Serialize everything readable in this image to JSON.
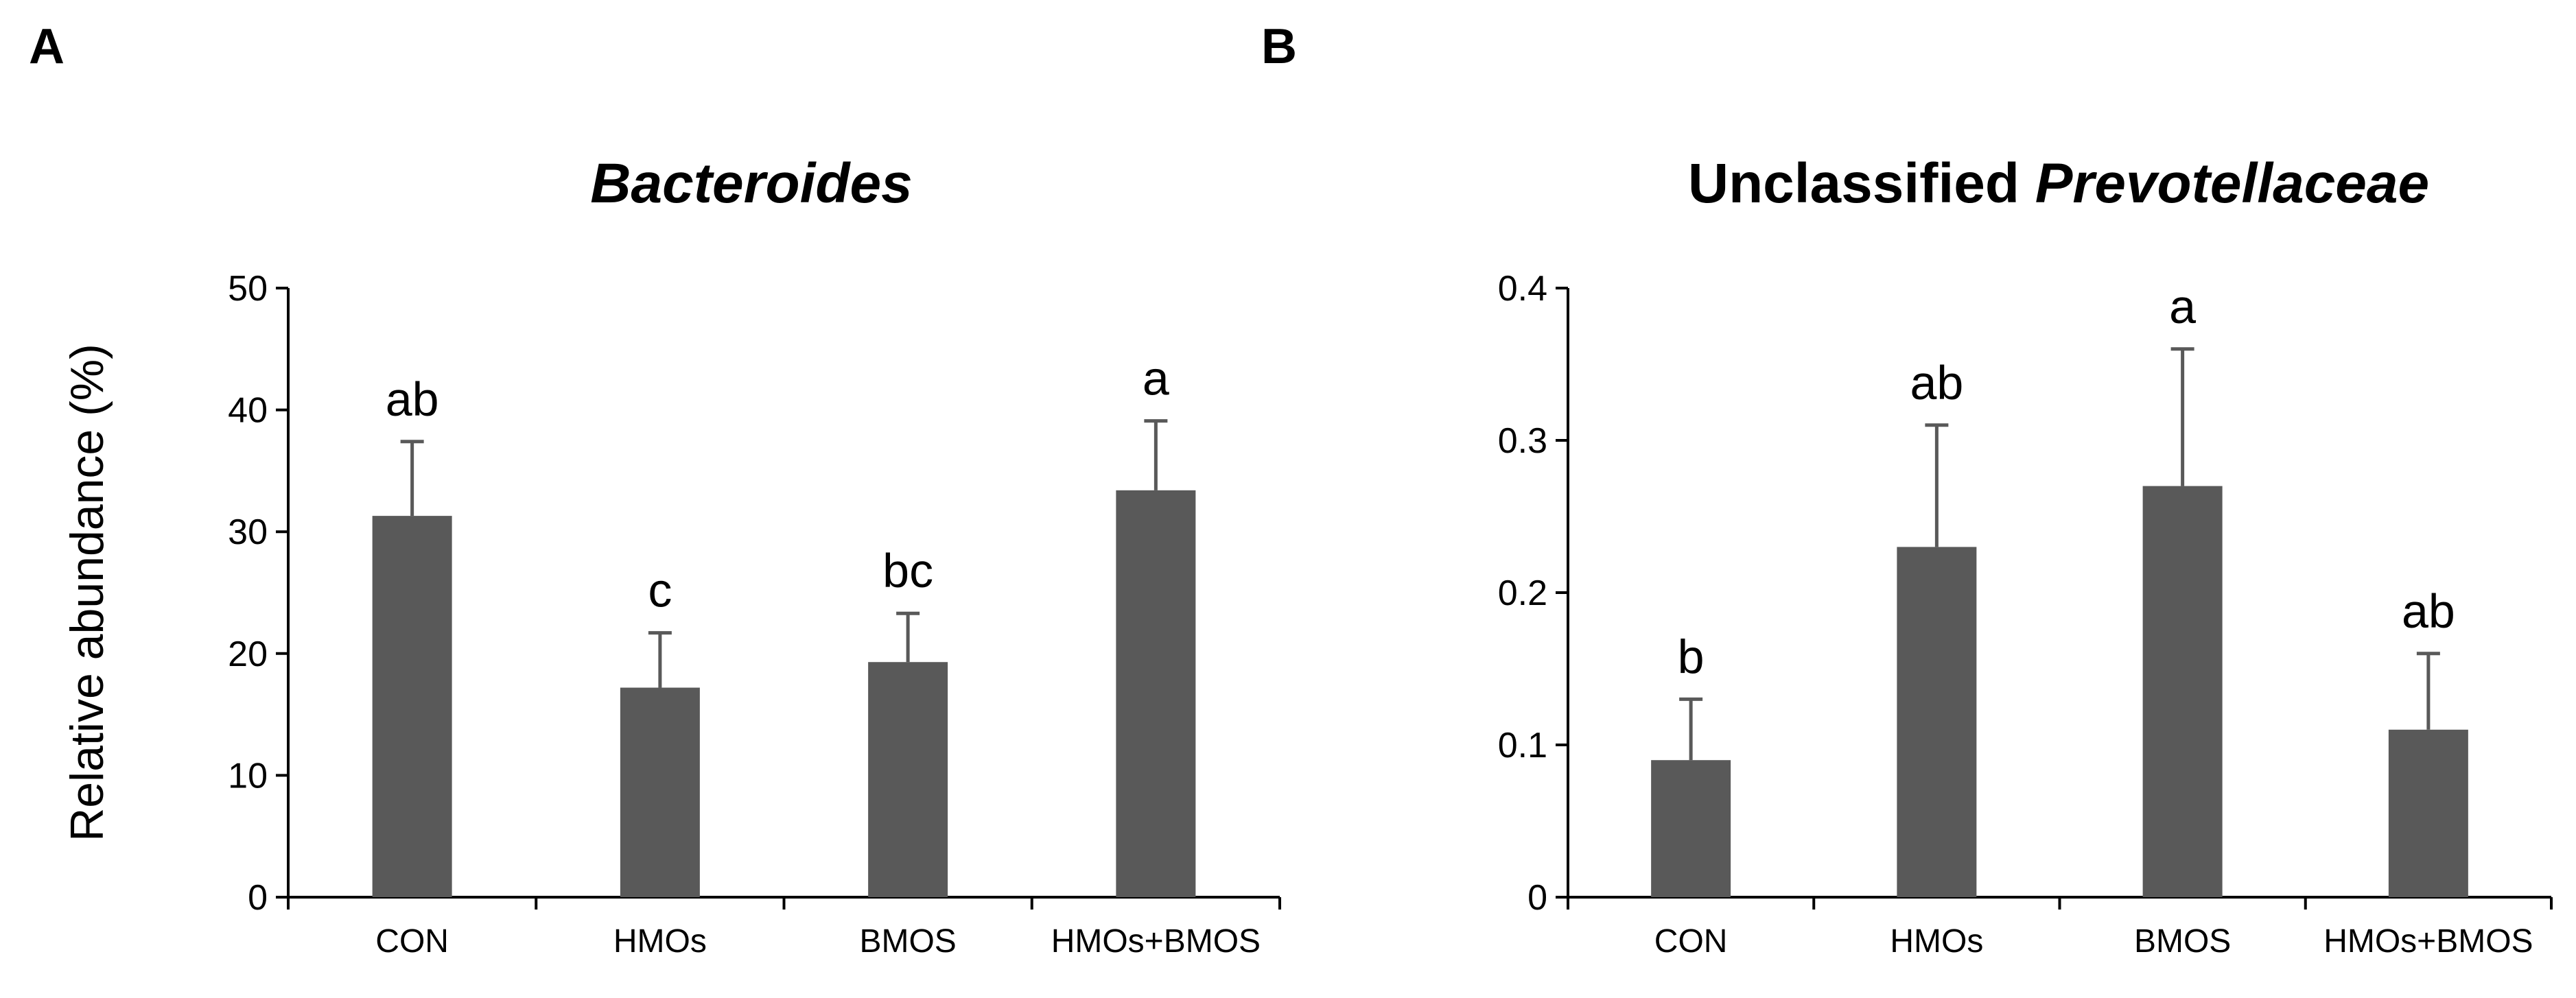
{
  "panels": [
    "A",
    "B"
  ],
  "chart_data": [
    {
      "type": "bar",
      "title": "Bacteroides",
      "title_parts": [
        {
          "text": "Bacteroides",
          "style": "bold-italic"
        }
      ],
      "xlabel": "",
      "ylabel": "Relative abundance (%)",
      "categories": [
        "CON",
        "HMOs",
        "BMOS",
        "HMOs+BMOS"
      ],
      "values": [
        31.3,
        17.2,
        19.3,
        33.4
      ],
      "error_upper": [
        37.4,
        21.7,
        23.3,
        39.1
      ],
      "significance_labels": [
        "ab",
        "c",
        "bc",
        "a"
      ],
      "ylim": [
        0,
        50
      ],
      "yticks": [
        0,
        10,
        20,
        30,
        40,
        50
      ],
      "ytick_labels": [
        "0",
        "10",
        "20",
        "30",
        "40",
        "50"
      ],
      "bar_color": "#595959",
      "grid": false
    },
    {
      "type": "bar",
      "title": "Unclassified Prevotellaceae",
      "title_parts": [
        {
          "text": "Unclassified ",
          "style": "bold"
        },
        {
          "text": "Prevotellaceae",
          "style": "bold-italic"
        }
      ],
      "xlabel": "",
      "ylabel": "",
      "categories": [
        "CON",
        "HMOs",
        "BMOS",
        "HMOs+BMOS"
      ],
      "values": [
        0.09,
        0.23,
        0.27,
        0.11
      ],
      "error_upper": [
        0.13,
        0.31,
        0.36,
        0.16
      ],
      "significance_labels": [
        "b",
        "ab",
        "a",
        "ab"
      ],
      "ylim": [
        0,
        0.4
      ],
      "yticks": [
        0,
        0.1,
        0.2,
        0.3,
        0.4
      ],
      "ytick_labels": [
        "0",
        "0.1",
        "0.2",
        "0.3",
        "0.4"
      ],
      "bar_color": "#595959",
      "grid": false
    }
  ]
}
